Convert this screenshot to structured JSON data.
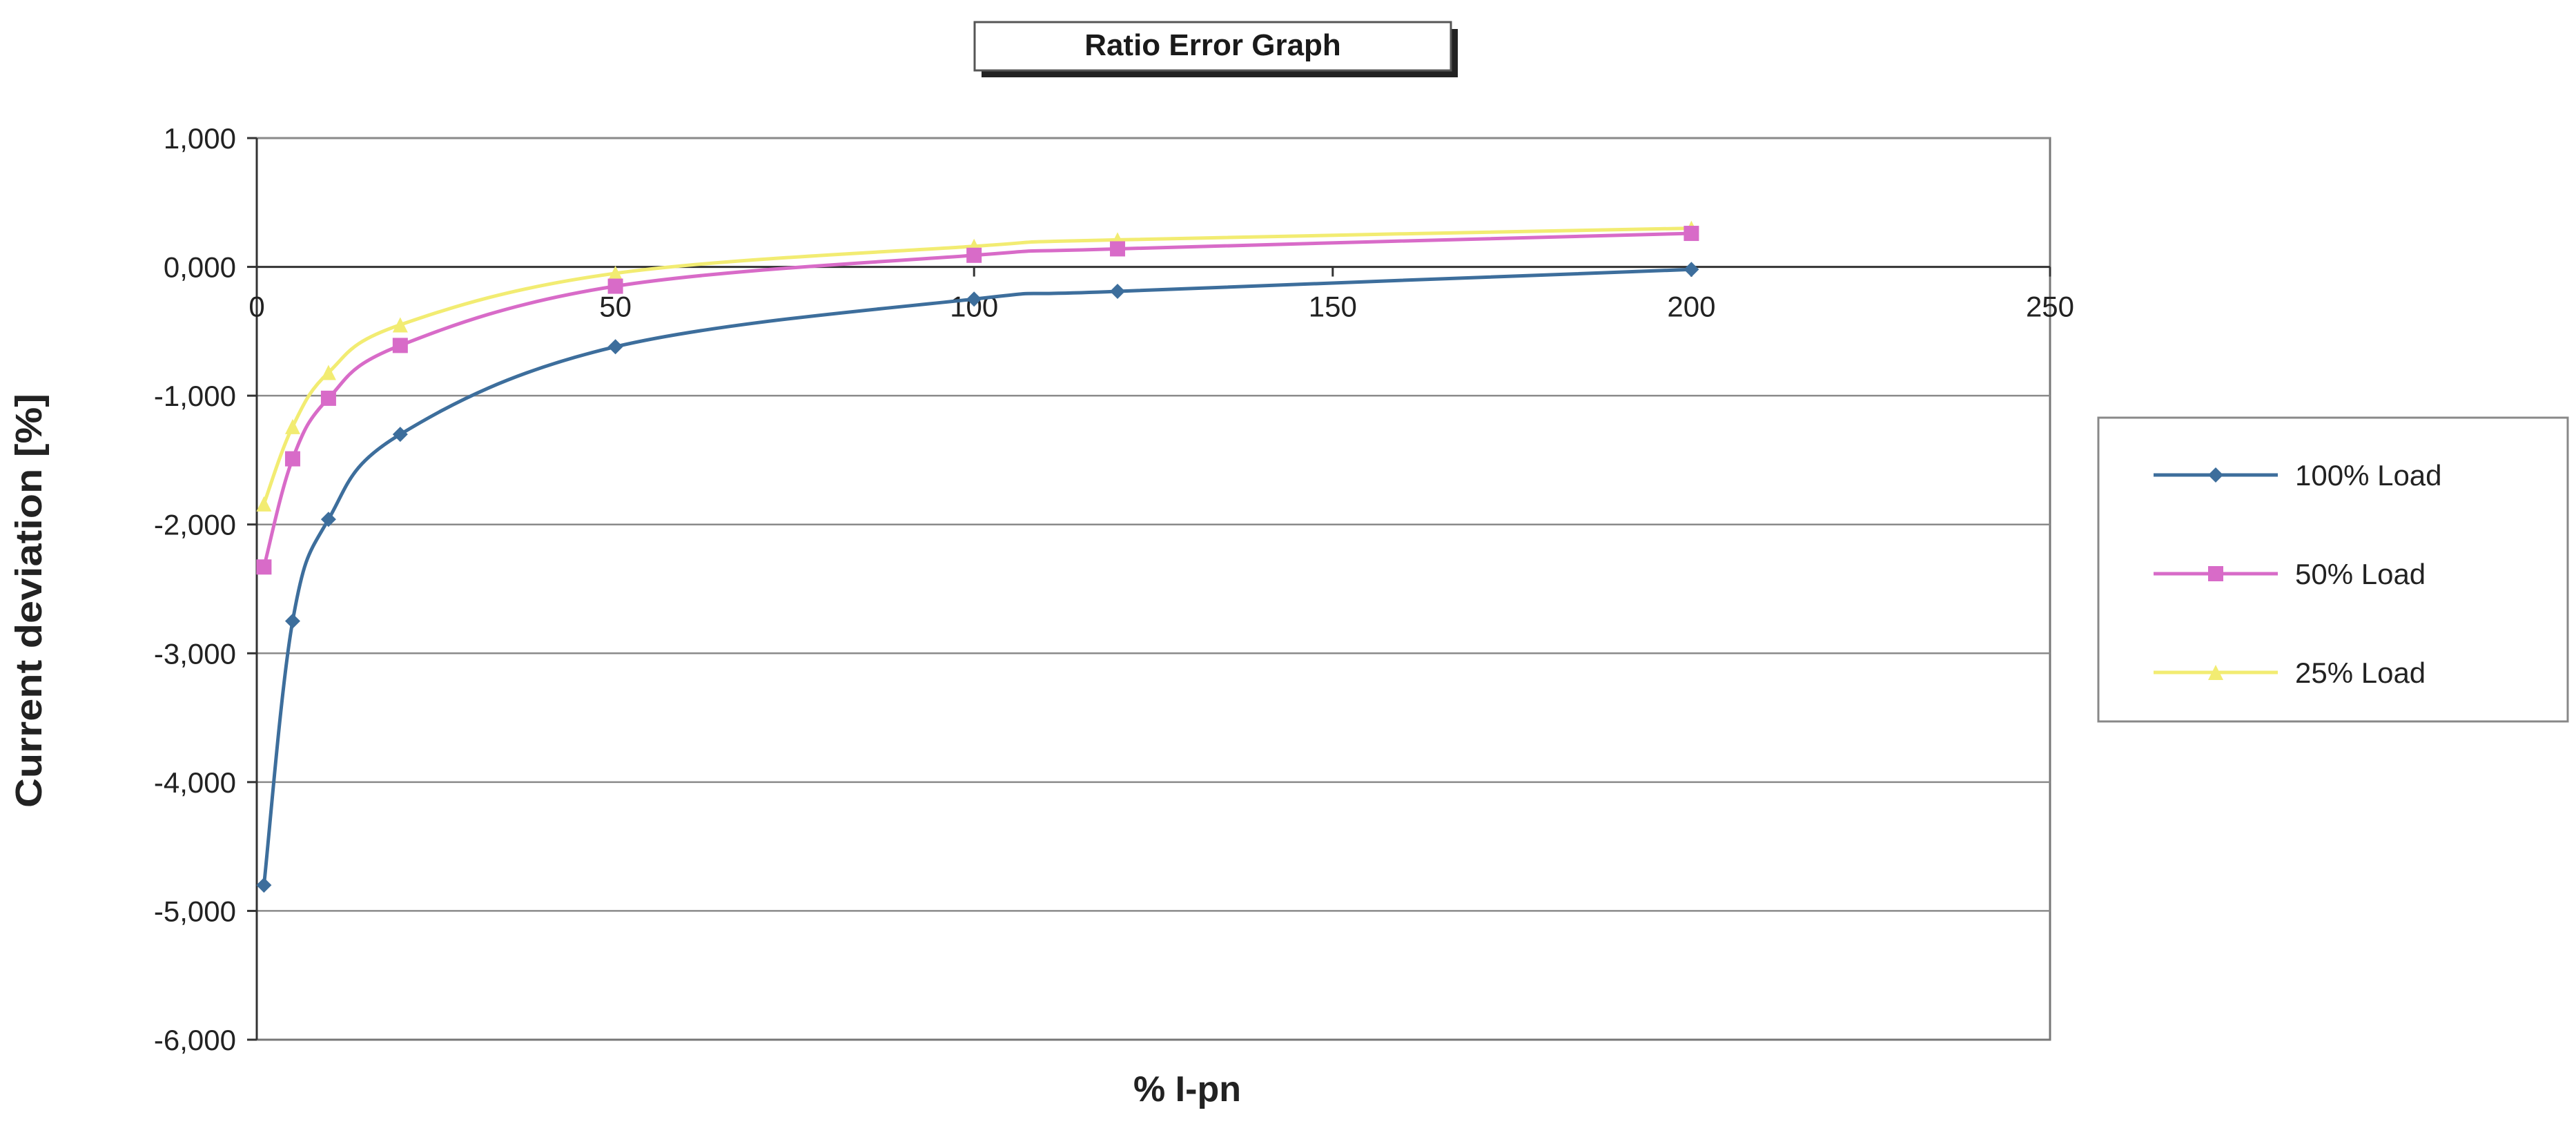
{
  "chart_data": {
    "type": "line",
    "title": "Ratio Error Graph",
    "xlabel": "% I-pn",
    "ylabel": "Current deviation [%]",
    "xlim": [
      0,
      250
    ],
    "ylim": [
      -6,
      1
    ],
    "x_ticks": [
      0,
      50,
      100,
      150,
      200,
      250
    ],
    "x_tick_labels": [
      "0",
      "50",
      "100",
      "150",
      "200",
      "250"
    ],
    "y_ticks": [
      1,
      0,
      -1,
      -2,
      -3,
      -4,
      -5,
      -6
    ],
    "y_tick_labels": [
      "1,000",
      "0,000",
      "-1,000",
      "-2,000",
      "-3,000",
      "-4,000",
      "-5,000",
      "-6,000"
    ],
    "grid": "horizontal",
    "legend_position": "right",
    "series": [
      {
        "name": "100% Load",
        "color": "#3d6e9c",
        "marker": "diamond",
        "x": [
          1,
          5,
          10,
          20,
          50,
          100,
          120,
          200
        ],
        "y": [
          -4.8,
          -2.75,
          -1.96,
          -1.3,
          -0.62,
          -0.25,
          -0.19,
          -0.02
        ]
      },
      {
        "name": "50% Load",
        "color": "#d86bc8",
        "marker": "square",
        "x": [
          1,
          5,
          10,
          20,
          50,
          100,
          120,
          200
        ],
        "y": [
          -2.33,
          -1.49,
          -1.02,
          -0.61,
          -0.15,
          0.09,
          0.14,
          0.26
        ]
      },
      {
        "name": "25% Load",
        "color": "#f2ec72",
        "marker": "triangle",
        "x": [
          1,
          5,
          10,
          20,
          50,
          100,
          120,
          200
        ],
        "y": [
          -1.84,
          -1.24,
          -0.82,
          -0.45,
          -0.05,
          0.16,
          0.21,
          0.3
        ]
      }
    ]
  }
}
